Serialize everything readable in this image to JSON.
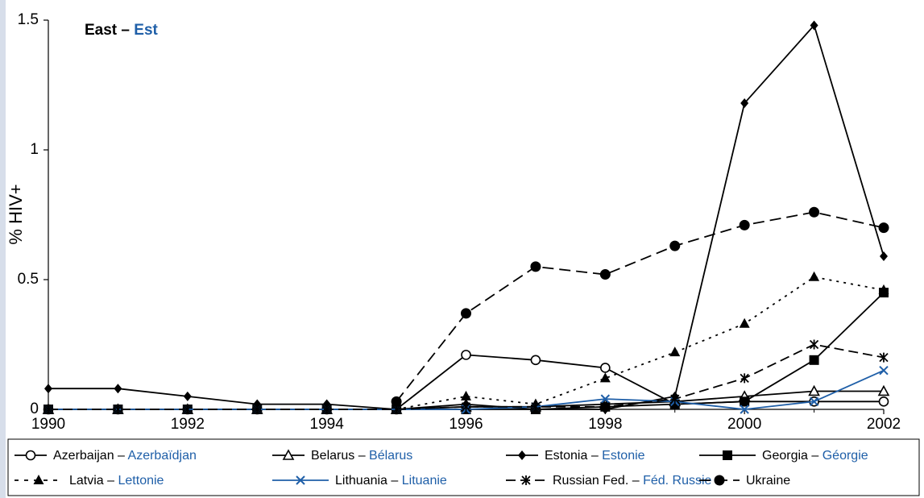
{
  "chart_data": {
    "type": "line",
    "title_en": "East",
    "title_sep": " – ",
    "title_fr": "Est",
    "ylabel": "% HIV+",
    "x": [
      1990,
      1991,
      1992,
      1993,
      1994,
      1995,
      1996,
      1997,
      1998,
      1999,
      2000,
      2001,
      2002
    ],
    "xticks": [
      "1990",
      "1992",
      "1994",
      "1996",
      "1998",
      "2000",
      "2002"
    ],
    "xlim": [
      1990,
      2002
    ],
    "yticks": [
      "0",
      "0.5",
      "1",
      "1.5"
    ],
    "ylim": [
      0,
      1.5
    ],
    "grid": false,
    "legend_position": "bottom",
    "series": [
      {
        "name": "Azerbaijan",
        "name_fr": "Azerbaïdjan",
        "color": "#000000",
        "dash": "",
        "marker": "circle-open",
        "points": [
          [
            1990,
            0.0
          ],
          [
            1991,
            0.0
          ],
          [
            1992,
            0.0
          ],
          [
            1993,
            0.0
          ],
          [
            1994,
            0.0
          ],
          [
            1995,
            0.0
          ],
          [
            1996,
            0.21
          ],
          [
            1997,
            0.19
          ],
          [
            1998,
            0.16
          ],
          [
            1999,
            0.02
          ],
          [
            2000,
            0.03
          ],
          [
            2001,
            0.03
          ],
          [
            2002,
            0.03
          ]
        ]
      },
      {
        "name": "Belarus",
        "name_fr": "Bélarus",
        "color": "#000000",
        "dash": "",
        "marker": "triangle-open",
        "points": [
          [
            1990,
            0.0
          ],
          [
            1991,
            0.0
          ],
          [
            1992,
            0.0
          ],
          [
            1993,
            0.0
          ],
          [
            1994,
            0.0
          ],
          [
            1995,
            0.0
          ],
          [
            1996,
            0.01
          ],
          [
            1997,
            0.01
          ],
          [
            1998,
            0.02
          ],
          [
            1999,
            0.03
          ],
          [
            2000,
            0.05
          ],
          [
            2001,
            0.07
          ],
          [
            2002,
            0.07
          ]
        ]
      },
      {
        "name": "Estonia",
        "name_fr": "Estonie",
        "color": "#000000",
        "dash": "",
        "marker": "diamond",
        "points": [
          [
            1990,
            0.08
          ],
          [
            1991,
            0.08
          ],
          [
            1992,
            0.05
          ],
          [
            1993,
            0.02
          ],
          [
            1994,
            0.02
          ],
          [
            1995,
            0.0
          ],
          [
            1996,
            0.02
          ],
          [
            1997,
            0.0
          ],
          [
            1998,
            0.0
          ],
          [
            1999,
            0.05
          ],
          [
            2000,
            1.18
          ],
          [
            2001,
            1.48
          ],
          [
            2002,
            0.59
          ]
        ]
      },
      {
        "name": "Georgia",
        "name_fr": "Géorgie",
        "color": "#000000",
        "dash": "",
        "marker": "square",
        "points": [
          [
            1990,
            0.0
          ],
          [
            1991,
            0.0
          ],
          [
            1992,
            0.0
          ],
          [
            1993,
            0.0
          ],
          [
            1994,
            0.0
          ],
          [
            1995,
            0.0
          ],
          [
            1996,
            0.0
          ],
          [
            1997,
            0.0
          ],
          [
            1998,
            0.01
          ],
          [
            1999,
            0.02
          ],
          [
            2000,
            0.03
          ],
          [
            2001,
            0.19
          ],
          [
            2002,
            0.45
          ]
        ]
      },
      {
        "name": "Latvia",
        "name_fr": "Lettonie",
        "color": "#000000",
        "dash": "3,6",
        "marker": "triangle",
        "points": [
          [
            1990,
            0.0
          ],
          [
            1991,
            0.0
          ],
          [
            1992,
            0.0
          ],
          [
            1993,
            0.0
          ],
          [
            1994,
            0.0
          ],
          [
            1995,
            0.0
          ],
          [
            1996,
            0.05
          ],
          [
            1997,
            0.02
          ],
          [
            1998,
            0.12
          ],
          [
            1999,
            0.22
          ],
          [
            2000,
            0.33
          ],
          [
            2001,
            0.51
          ],
          [
            2002,
            0.46
          ]
        ]
      },
      {
        "name": "Lithuania",
        "name_fr": "Lituanie",
        "color": "#1f5fa8",
        "dash": "",
        "marker": "star",
        "points": [
          [
            1990,
            0.0
          ],
          [
            1991,
            0.0
          ],
          [
            1992,
            0.0
          ],
          [
            1993,
            0.0
          ],
          [
            1994,
            0.0
          ],
          [
            1995,
            0.0
          ],
          [
            1996,
            0.0
          ],
          [
            1997,
            0.01
          ],
          [
            1998,
            0.04
          ],
          [
            1999,
            0.03
          ],
          [
            2000,
            0.0
          ],
          [
            2001,
            0.03
          ],
          [
            2002,
            0.15
          ]
        ]
      },
      {
        "name": "Russian Fed.",
        "name_fr": "Féd. Russie",
        "color": "#000000",
        "dash": "12,6",
        "marker": "asterisk",
        "points": [
          [
            1990,
            0.0
          ],
          [
            1991,
            0.0
          ],
          [
            1992,
            0.0
          ],
          [
            1993,
            0.0
          ],
          [
            1994,
            0.0
          ],
          [
            1995,
            0.0
          ],
          [
            1996,
            0.01
          ],
          [
            1997,
            0.01
          ],
          [
            1998,
            0.01
          ],
          [
            1999,
            0.04
          ],
          [
            2000,
            0.12
          ],
          [
            2001,
            0.25
          ],
          [
            2002,
            0.2
          ]
        ]
      },
      {
        "name": "Ukraine",
        "name_fr": "",
        "color": "#000000",
        "dash": "14,7",
        "marker": "circle",
        "points": [
          [
            1995,
            0.03
          ],
          [
            1996,
            0.37
          ],
          [
            1997,
            0.55
          ],
          [
            1998,
            0.52
          ],
          [
            1999,
            0.63
          ],
          [
            2000,
            0.71
          ],
          [
            2001,
            0.76
          ],
          [
            2002,
            0.7
          ]
        ]
      }
    ],
    "legend_sep": " – "
  }
}
